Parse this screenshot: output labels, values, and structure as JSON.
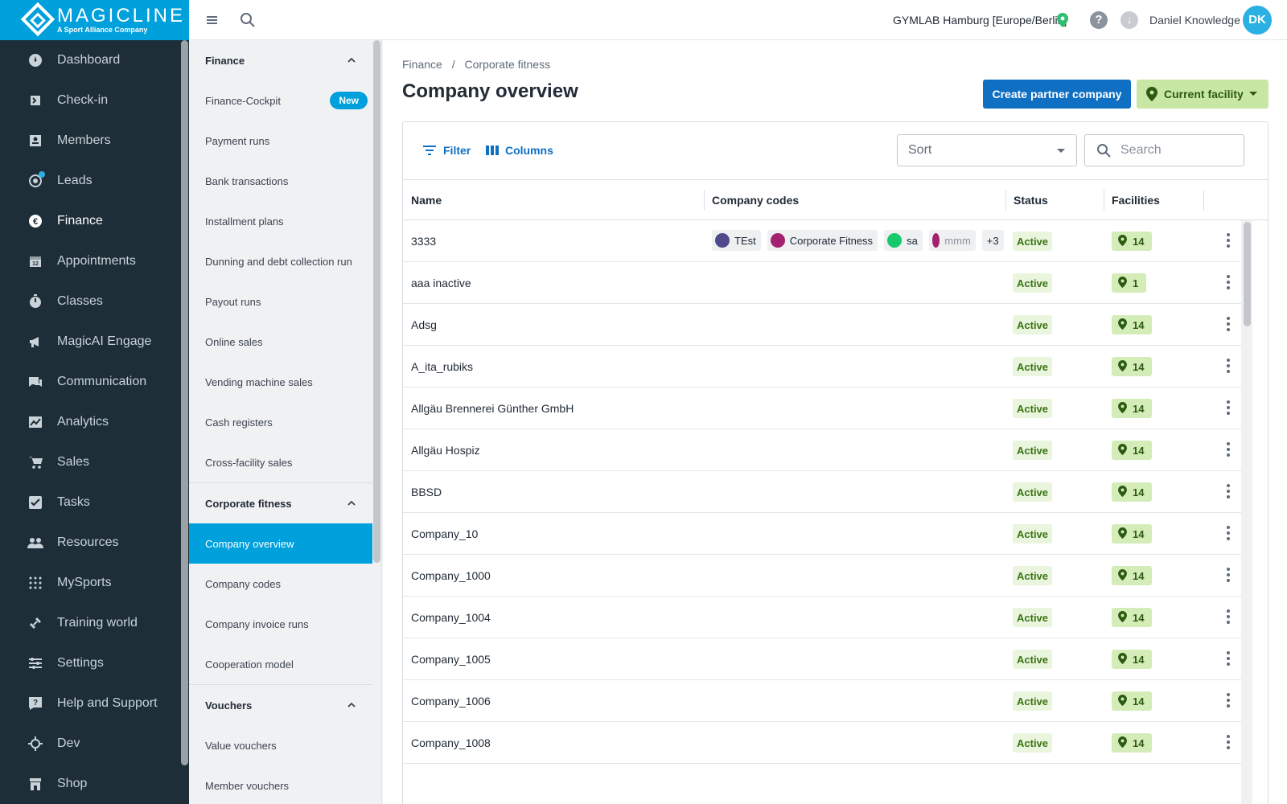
{
  "app": {
    "logo_text": "MAGICLINE",
    "logo_sub": "A Sport Alliance Company"
  },
  "header": {
    "facility": "GYMLAB Hamburg [Europe/Berlin]",
    "username": "Daniel Knowledge",
    "avatar_initials": "DK"
  },
  "main_nav": [
    {
      "label": "Dashboard",
      "icon": "dashboard-icon"
    },
    {
      "label": "Check-in",
      "icon": "check-in-icon"
    },
    {
      "label": "Members",
      "icon": "members-icon"
    },
    {
      "label": "Leads",
      "icon": "leads-icon"
    },
    {
      "label": "Finance",
      "icon": "finance-icon"
    },
    {
      "label": "Appointments",
      "icon": "calendar-icon"
    },
    {
      "label": "Classes",
      "icon": "timer-icon"
    },
    {
      "label": "MagicAI Engage",
      "icon": "megaphone-icon"
    },
    {
      "label": "Communication",
      "icon": "chat-icon"
    },
    {
      "label": "Analytics",
      "icon": "chart-icon"
    },
    {
      "label": "Sales",
      "icon": "cart-icon"
    },
    {
      "label": "Tasks",
      "icon": "checkbox-icon"
    },
    {
      "label": "Resources",
      "icon": "people-icon"
    },
    {
      "label": "MySports",
      "icon": "dots-grid-icon"
    },
    {
      "label": "Training world",
      "icon": "dumbbell-icon"
    },
    {
      "label": "Settings",
      "icon": "sliders-icon"
    },
    {
      "label": "Help and Support",
      "icon": "help-chat-icon"
    },
    {
      "label": "Dev",
      "icon": "crosshair-icon"
    },
    {
      "label": "Shop",
      "icon": "shop-icon"
    }
  ],
  "sub_nav": {
    "finance_section": "Finance",
    "finance_items": [
      {
        "label": "Finance-Cockpit",
        "badge": "New"
      },
      {
        "label": "Payment runs"
      },
      {
        "label": "Bank transactions"
      },
      {
        "label": "Installment plans"
      },
      {
        "label": "Dunning and debt collection run"
      },
      {
        "label": "Payout runs"
      },
      {
        "label": "Online sales"
      },
      {
        "label": "Vending machine sales"
      },
      {
        "label": "Cash registers"
      },
      {
        "label": "Cross-facility sales"
      }
    ],
    "corporate_section": "Corporate fitness",
    "corporate_items": [
      {
        "label": "Company overview"
      },
      {
        "label": "Company codes"
      },
      {
        "label": "Company invoice runs"
      },
      {
        "label": "Cooperation model"
      }
    ],
    "vouchers_section": "Vouchers",
    "vouchers_items": [
      {
        "label": "Value vouchers"
      },
      {
        "label": "Member vouchers"
      }
    ]
  },
  "content": {
    "breadcrumb": [
      "Finance",
      "/",
      "Corporate fitness"
    ],
    "title": "Company overview",
    "create_button": "Create partner company",
    "facility_button": "Current facility",
    "filter_label": "Filter",
    "columns_label": "Columns",
    "sort_placeholder": "Sort",
    "search_placeholder": "Search",
    "table_headers": {
      "name": "Name",
      "codes": "Company codes",
      "status": "Status",
      "facilities": "Facilities"
    },
    "rows": [
      {
        "name": "3333",
        "status": "Active",
        "facilities": "14",
        "codes": [
          {
            "label": "TEst",
            "color": "#4e4a8c"
          },
          {
            "label": "Corporate Fitness",
            "color": "#a3216e"
          },
          {
            "label": "sa",
            "color": "#16c96a"
          },
          {
            "label": "mmm",
            "color": "#a3216e"
          }
        ],
        "more": "+3"
      },
      {
        "name": "aaa inactive",
        "status": "Active",
        "facilities": "1"
      },
      {
        "name": "Adsg",
        "status": "Active",
        "facilities": "14"
      },
      {
        "name": "A_ita_rubiks",
        "status": "Active",
        "facilities": "14"
      },
      {
        "name": "Allgäu Brennerei Günther GmbH",
        "status": "Active",
        "facilities": "14"
      },
      {
        "name": "Allgäu Hospiz",
        "status": "Active",
        "facilities": "14"
      },
      {
        "name": "BBSD",
        "status": "Active",
        "facilities": "14"
      },
      {
        "name": "Company_10",
        "status": "Active",
        "facilities": "14"
      },
      {
        "name": "Company_1000",
        "status": "Active",
        "facilities": "14"
      },
      {
        "name": "Company_1004",
        "status": "Active",
        "facilities": "14"
      },
      {
        "name": "Company_1005",
        "status": "Active",
        "facilities": "14"
      },
      {
        "name": "Company_1006",
        "status": "Active",
        "facilities": "14"
      },
      {
        "name": "Company_1008",
        "status": "Active",
        "facilities": "14"
      }
    ]
  },
  "colors": {
    "brand": "#00a0dc",
    "nav_bg": "#1d2e38",
    "primary_button": "#0e6fc3",
    "facility_button": "#c8e6a4",
    "status_bg": "#eaf5dd"
  }
}
